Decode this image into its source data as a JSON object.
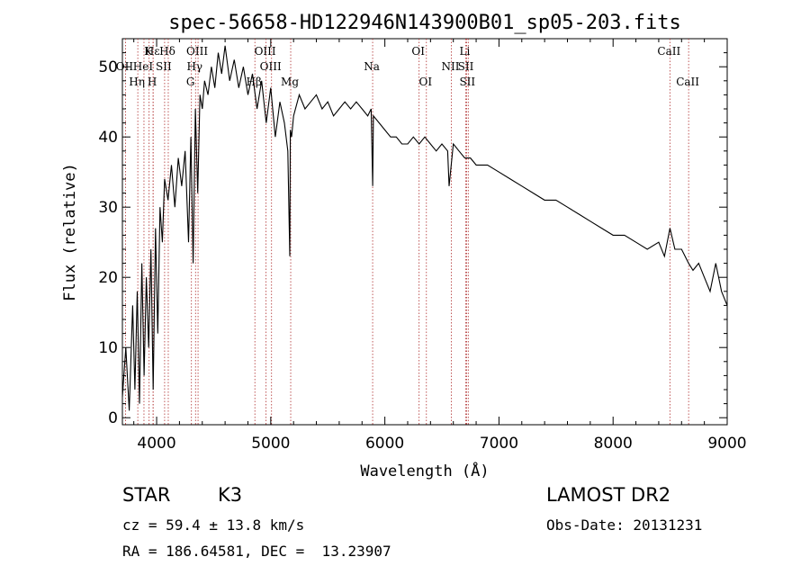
{
  "chart_data": {
    "type": "line",
    "title": "spec-56658-HD122946N143900B01_sp05-203.fits",
    "xlabel": "Wavelength (Å)",
    "ylabel": "Flux (relative)",
    "xlim": [
      3700,
      9000
    ],
    "ylim": [
      -1,
      54
    ],
    "xticks": [
      4000,
      5000,
      6000,
      7000,
      8000,
      9000
    ],
    "yticks": [
      0,
      10,
      20,
      30,
      40,
      50
    ],
    "spectrum": {
      "x": [
        3700,
        3730,
        3760,
        3790,
        3810,
        3830,
        3850,
        3870,
        3890,
        3910,
        3930,
        3950,
        3970,
        3990,
        4010,
        4030,
        4050,
        4070,
        4100,
        4130,
        4160,
        4190,
        4220,
        4250,
        4280,
        4300,
        4320,
        4340,
        4360,
        4380,
        4400,
        4420,
        4450,
        4480,
        4510,
        4540,
        4570,
        4600,
        4640,
        4680,
        4720,
        4760,
        4800,
        4840,
        4880,
        4920,
        4960,
        5000,
        5040,
        5080,
        5120,
        5150,
        5167,
        5172,
        5183,
        5200,
        5250,
        5300,
        5350,
        5400,
        5450,
        5500,
        5550,
        5600,
        5650,
        5700,
        5750,
        5800,
        5850,
        5880,
        5893,
        5900,
        5950,
        6000,
        6050,
        6100,
        6150,
        6200,
        6250,
        6300,
        6350,
        6400,
        6450,
        6500,
        6550,
        6563,
        6600,
        6650,
        6700,
        6750,
        6800,
        6900,
        7000,
        7100,
        7200,
        7300,
        7400,
        7500,
        7600,
        7700,
        7800,
        7900,
        8000,
        8100,
        8200,
        8300,
        8400,
        8450,
        8498,
        8542,
        8600,
        8662,
        8700,
        8750,
        8800,
        8850,
        8900,
        8950,
        9000
      ],
      "y": [
        3,
        10,
        1,
        16,
        4,
        18,
        2,
        22,
        6,
        20,
        10,
        24,
        4,
        27,
        12,
        30,
        25,
        34,
        31,
        36,
        30,
        37,
        33,
        38,
        25,
        40,
        22,
        44,
        32,
        46,
        44,
        48,
        46,
        50,
        47,
        52,
        49,
        53,
        48,
        51,
        47,
        50,
        46,
        49,
        44,
        48,
        42,
        47,
        40,
        45,
        42,
        38,
        23,
        41,
        40,
        43,
        46,
        44,
        45,
        46,
        44,
        45,
        43,
        44,
        45,
        44,
        45,
        44,
        43,
        44,
        33,
        43,
        42,
        41,
        40,
        40,
        39,
        39,
        40,
        39,
        40,
        39,
        38,
        39,
        38,
        33,
        39,
        38,
        37,
        37,
        36,
        36,
        35,
        34,
        33,
        32,
        31,
        31,
        30,
        29,
        28,
        27,
        26,
        26,
        25,
        24,
        25,
        23,
        27,
        24,
        24,
        22,
        21,
        22,
        20,
        18,
        22,
        18,
        16
      ]
    },
    "lines": [
      {
        "name": "Hε",
        "x": 3970
      },
      {
        "name": "K",
        "x": 3934
      },
      {
        "name": "Hδ",
        "x": 4102
      },
      {
        "name": "OIII",
        "x": 4363
      },
      {
        "name": "OIII",
        "x": 4959
      },
      {
        "name": "OI",
        "x": 6300
      },
      {
        "name": "Li",
        "x": 6708
      },
      {
        "name": "CaII",
        "x": 8498
      },
      {
        "name": "OII",
        "x": 3727
      },
      {
        "name": "HeI",
        "x": 3889
      },
      {
        "name": "SII",
        "x": 4070
      },
      {
        "name": "Hγ",
        "x": 4341
      },
      {
        "name": "OIII",
        "x": 5007
      },
      {
        "name": "Na",
        "x": 5893
      },
      {
        "name": "NII",
        "x": 6583
      },
      {
        "name": "SII",
        "x": 6717
      },
      {
        "name": "Hη",
        "x": 3835
      },
      {
        "name": "H",
        "x": 3969
      },
      {
        "name": "G",
        "x": 4305
      },
      {
        "name": "Hβ",
        "x": 4861
      },
      {
        "name": "Mg",
        "x": 5175
      },
      {
        "name": "OI",
        "x": 6364
      },
      {
        "name": "SII",
        "x": 6731
      },
      {
        "name": "CaII",
        "x": 8662
      }
    ],
    "grid": false
  },
  "info": {
    "class_label": "STAR",
    "subclass": "K3",
    "survey": "LAMOST DR2",
    "cz": "cz = 59.4 ± 13.8 km/s",
    "obs_date": "Obs-Date: 20131231",
    "coords": "RA = 186.64581, DEC =  13.23907"
  }
}
